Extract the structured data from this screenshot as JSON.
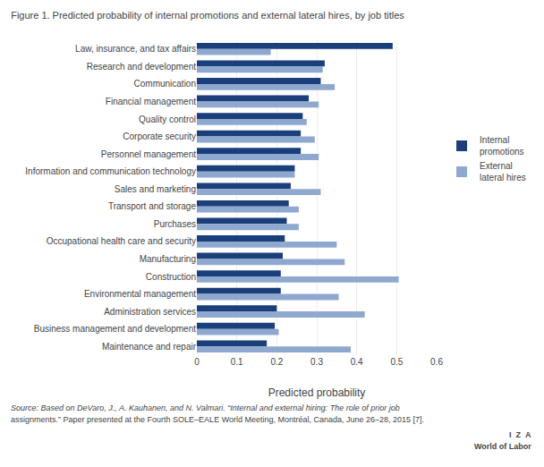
{
  "chart_data": {
    "type": "bar",
    "orientation": "horizontal",
    "title": "Figure 1. Predicted probability of internal promotions and external lateral hires, by job titles",
    "categories": [
      "Law, insurance, and tax affairs",
      "Research and development",
      "Communication",
      "Financial management",
      "Quality control",
      "Corporate security",
      "Personnel management",
      "Information and communication technology",
      "Sales and marketing",
      "Transport and storage",
      "Purchases",
      "Occupational health care and security",
      "Manufacturing",
      "Construction",
      "Environmental management",
      "Administration services",
      "Business management and development",
      "Maintenance and repair"
    ],
    "series": [
      {
        "name": "Internal\npromotions",
        "color": "#1a3f7a",
        "values": [
          0.49,
          0.32,
          0.31,
          0.28,
          0.265,
          0.26,
          0.26,
          0.245,
          0.235,
          0.23,
          0.225,
          0.22,
          0.215,
          0.21,
          0.21,
          0.2,
          0.195,
          0.175
        ]
      },
      {
        "name": "External\nlateral hires",
        "color": "#8fa8d0",
        "values": [
          0.185,
          0.315,
          0.345,
          0.305,
          0.275,
          0.295,
          0.305,
          0.245,
          0.31,
          0.255,
          0.255,
          0.35,
          0.37,
          0.505,
          0.355,
          0.42,
          0.205,
          0.385
        ]
      }
    ],
    "xlabel": "Predicted probability",
    "xlim": [
      0,
      0.6
    ],
    "xticks": [
      0,
      0.1,
      0.2,
      0.3,
      0.4,
      0.5,
      0.6
    ],
    "grid": true,
    "legend": "right",
    "annotations": [
      "Source: Based on DeVaro, J., A. Kauhanen, and N. Valmari. “Internal and external hiring: The role of prior job",
      "assignments.” Paper presented at the Fourth SOLE–EALE World Meeting, Montréal, Canada, June 26–28, 2015 [7].",
      "I  Z  A",
      "World of Labor"
    ]
  }
}
